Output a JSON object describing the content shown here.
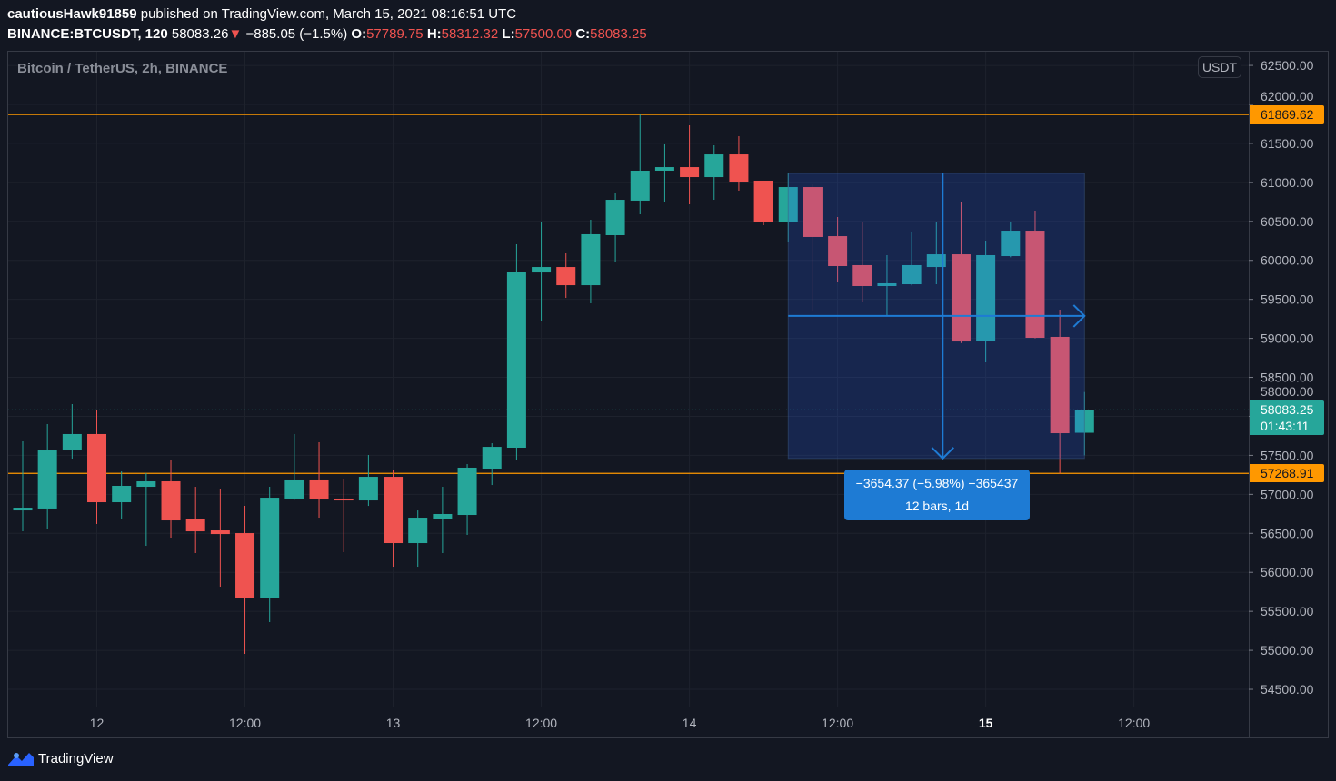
{
  "header": {
    "user": "cautiousHawk91859",
    "published": "published on TradingView.com, March 15, 2021 08:16:51 UTC",
    "symbol": "BINANCE:BTCUSDT, 120",
    "last": "58083.26",
    "change": "−885.05 (−1.5%)",
    "o_label": "O:",
    "o": "57789.75",
    "h_label": "H:",
    "h": "58312.32",
    "l_label": "L:",
    "l": "57500.00",
    "c_label": "C:",
    "c": "58083.25"
  },
  "legend": "Bitcoin / TetherUS, 2h, BINANCE",
  "currency_button": "USDT",
  "price_labels": {
    "high_line": "61869.62",
    "low_line": "57268.91",
    "last_price": "58083.25",
    "countdown": "01:43:11"
  },
  "measure": {
    "line1": "−3654.37 (−5.98%) −365437",
    "line2": "12 bars, 1d"
  },
  "footer": {
    "brand": "TradingView"
  },
  "colors": {
    "up": "#26a69a",
    "down": "#ef5350",
    "hline": "#ff9800",
    "bg": "#131722",
    "measure": "#1e7bd4"
  },
  "chart_data": {
    "type": "candlestick",
    "title": "Bitcoin / TetherUS, 2h, BINANCE",
    "ylim": [
      54250,
      62600
    ],
    "y_ticks": [
      "62500.00",
      "62000.00",
      "61500.00",
      "61000.00",
      "60500.00",
      "60000.00",
      "59500.00",
      "59000.00",
      "58500.00",
      "58000.00",
      "57500.00",
      "57000.00",
      "56500.00",
      "56000.00",
      "55500.00",
      "55000.00",
      "54500.00"
    ],
    "x_ticks": [
      {
        "label": "12",
        "bar": 3,
        "bold": false
      },
      {
        "label": "12:00",
        "bar": 9,
        "bold": false
      },
      {
        "label": "13",
        "bar": 15,
        "bold": false
      },
      {
        "label": "12:00",
        "bar": 21,
        "bold": false
      },
      {
        "label": "14",
        "bar": 27,
        "bold": false
      },
      {
        "label": "12:00",
        "bar": 33,
        "bold": false
      },
      {
        "label": "15",
        "bar": 39,
        "bold": true
      },
      {
        "label": "12:00",
        "bar": 45,
        "bold": false
      }
    ],
    "ohlc": [
      [
        56794,
        57679,
        56526,
        56829
      ],
      [
        56818,
        57901,
        56550,
        57563
      ],
      [
        57563,
        58157,
        57458,
        57773
      ],
      [
        57773,
        58087,
        56620,
        56899
      ],
      [
        56899,
        57295,
        56689,
        57109
      ],
      [
        57097,
        57272,
        56340,
        57167
      ],
      [
        57167,
        57435,
        56445,
        56666
      ],
      [
        56678,
        57097,
        56247,
        56526
      ],
      [
        56538,
        57074,
        55816,
        56491
      ],
      [
        56503,
        56852,
        54954,
        55676
      ],
      [
        55676,
        57097,
        55362,
        56957
      ],
      [
        56946,
        57773,
        56930,
        57179
      ],
      [
        57179,
        57668,
        56701,
        56934
      ],
      [
        56946,
        57202,
        56259,
        56922
      ],
      [
        56922,
        57505,
        56852,
        57225
      ],
      [
        57225,
        57307,
        56072,
        56375
      ],
      [
        56375,
        56794,
        56072,
        56701
      ],
      [
        56689,
        57097,
        56247,
        56748
      ],
      [
        56736,
        57388,
        56480,
        57342
      ],
      [
        57330,
        57656,
        57120,
        57609
      ],
      [
        57598,
        60207,
        57435,
        59857
      ],
      [
        59845,
        60498,
        59228,
        59915
      ],
      [
        59915,
        60090,
        59519,
        59682
      ],
      [
        59682,
        60521,
        59450,
        60335
      ],
      [
        60323,
        60870,
        59974,
        60777
      ],
      [
        60766,
        61869.62,
        60591,
        61150
      ],
      [
        61150,
        61488,
        60754,
        61196
      ],
      [
        61196,
        61732,
        60719,
        61068
      ],
      [
        61068,
        61476,
        60777,
        61359
      ],
      [
        61359,
        61592,
        60894,
        61010
      ],
      [
        61022,
        61022,
        60451,
        60486
      ],
      [
        60486,
        61115,
        60241,
        60940
      ],
      [
        60940,
        60975,
        59345,
        60300
      ],
      [
        60311,
        60556,
        59729,
        59927
      ],
      [
        59939,
        60486,
        59461,
        59671
      ],
      [
        59671,
        60067,
        59287,
        59706
      ],
      [
        59694,
        60370,
        59680,
        59939
      ],
      [
        59915,
        60486,
        59694,
        60078
      ],
      [
        60078,
        60754,
        58940,
        58960
      ],
      [
        58972,
        60253,
        58693,
        60067
      ],
      [
        60055,
        60498,
        60040,
        60381
      ],
      [
        60381,
        60637,
        59000,
        59007
      ],
      [
        59019,
        59368,
        57268.91,
        57784
      ],
      [
        57789.75,
        58312.32,
        57500,
        58083.25
      ]
    ],
    "hlines": [
      61869.62,
      57268.91
    ],
    "last_price": 58083.25,
    "measure_range": {
      "from_bar": 31,
      "to_bar": 43,
      "from_price": 61115,
      "to_price": 57460
    }
  }
}
